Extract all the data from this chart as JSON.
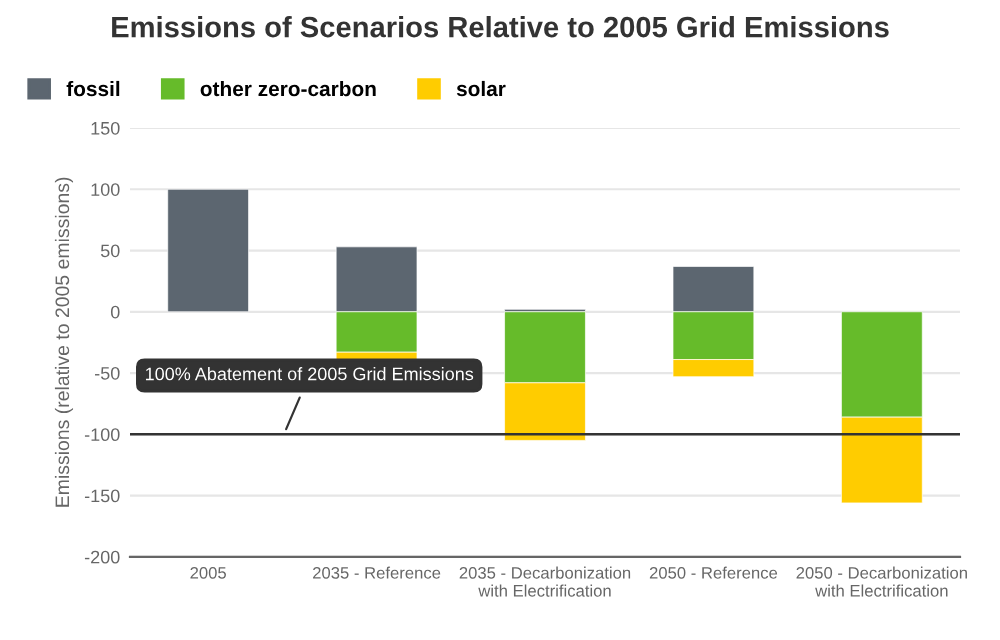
{
  "chart_data": {
    "type": "bar",
    "title": "Emissions of Scenarios Relative to 2005 Grid Emissions",
    "ylabel": "Emissions (relative to 2005 emissions)",
    "categories": [
      "2005",
      "2035 - Reference",
      "2035 - Decarbonization\nwith Electrification",
      "2050 - Reference",
      "2050 - Decarbonization\nwith Electrification"
    ],
    "series": [
      {
        "name": "fossil",
        "color": "#5c6670",
        "values": [
          100,
          53,
          2,
          37,
          null
        ]
      },
      {
        "name": "other zero-carbon",
        "color": "#66bb2a",
        "values": [
          null,
          -33,
          -58,
          -39,
          -86
        ]
      },
      {
        "name": "solar",
        "color": "#ffcc00",
        "values": [
          null,
          -9,
          -47,
          -14,
          -70
        ]
      }
    ],
    "stacked": true,
    "ylim": [
      -200,
      150
    ],
    "yticks": [
      -200,
      -150,
      -100,
      -50,
      0,
      50,
      100,
      150
    ],
    "grid": "y",
    "legend": "top left",
    "ref_lines": [
      {
        "axis": "y",
        "value": -100,
        "label": "100% Abatement of 2005 Grid Emissions",
        "color": "#333333"
      }
    ]
  }
}
